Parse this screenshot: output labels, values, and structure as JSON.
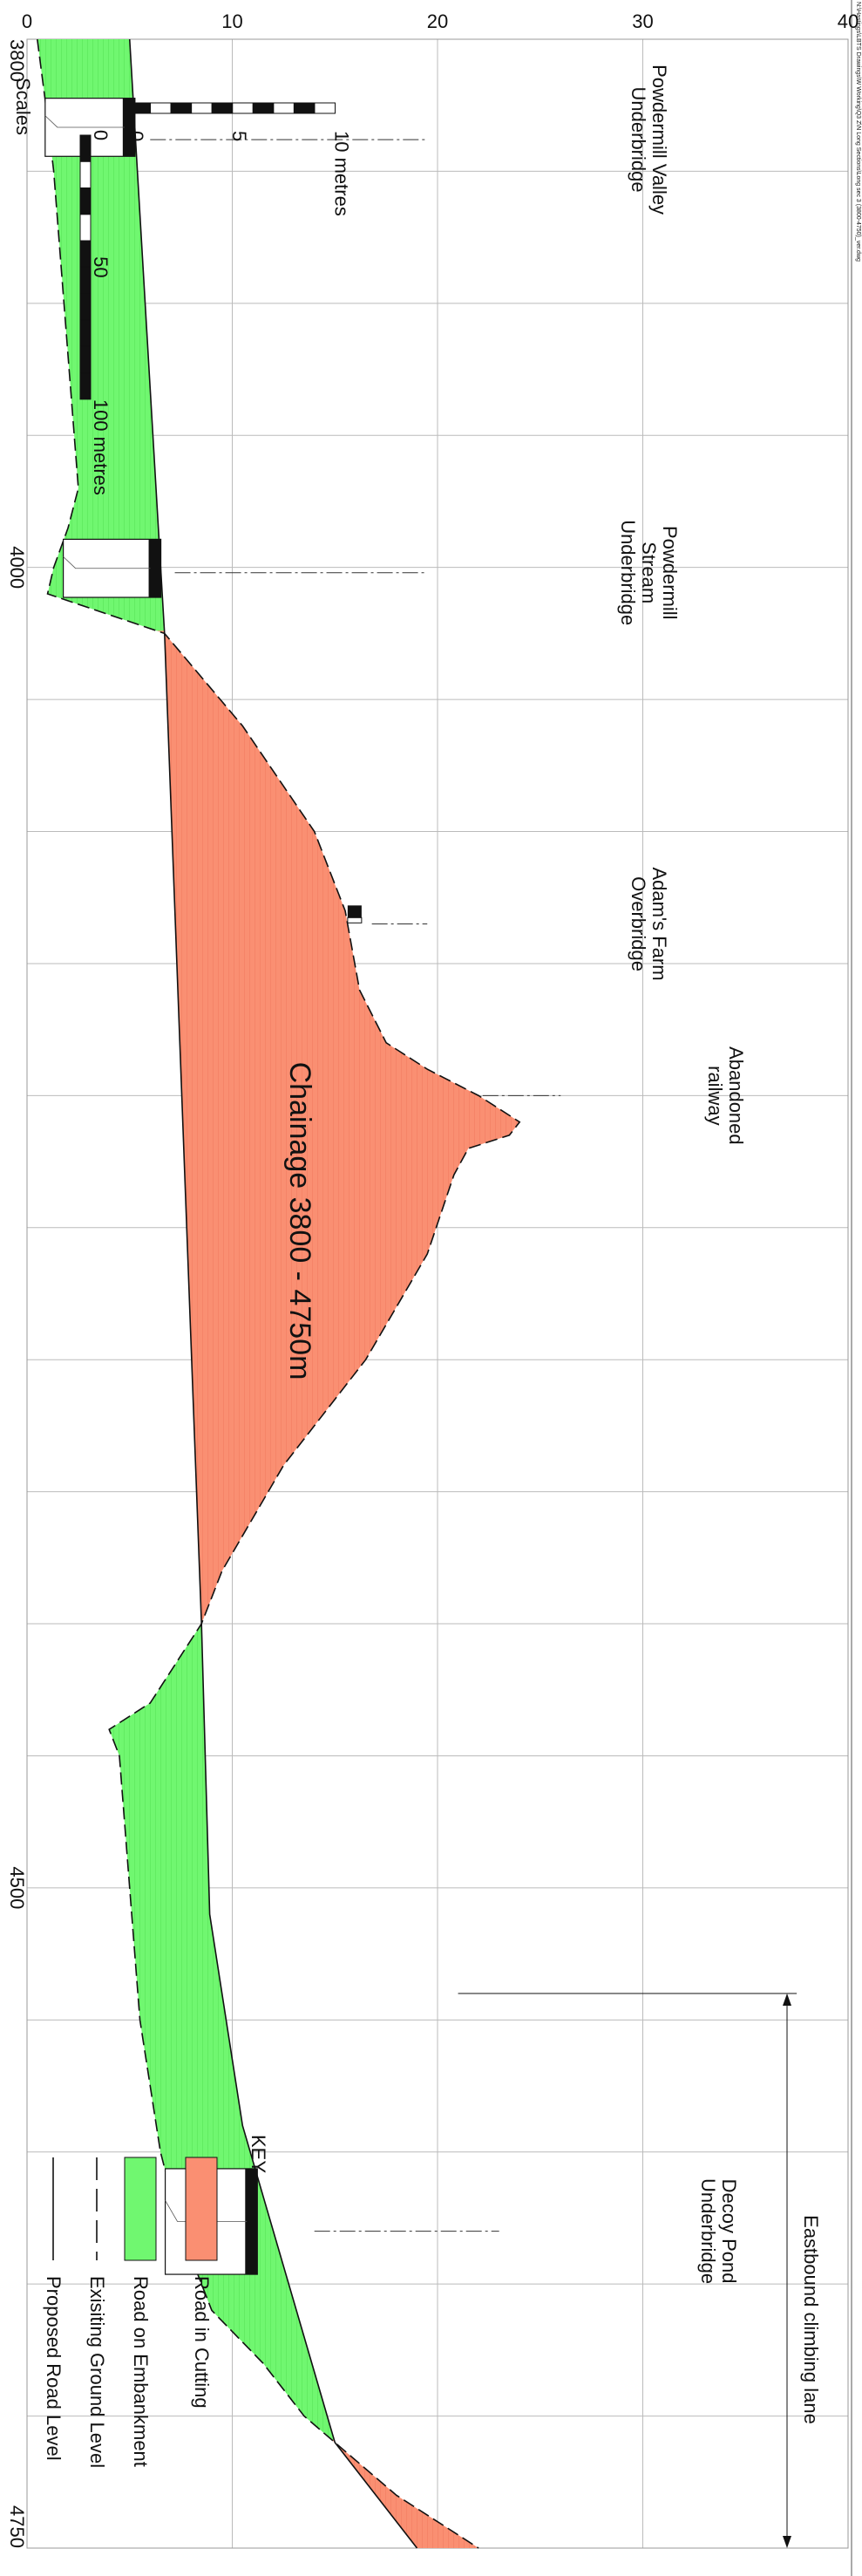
{
  "header": {
    "path_text": "N:\\Hastings\\LBTS Drawings\\W Working\\Q3 Z\\N Long Sections\\Long sec 3 (3800-4750)_ver.dwg"
  },
  "chart": {
    "title": "Chainage  3800 - 4750m",
    "x_ticks": [
      "3800",
      "4000",
      "4500",
      "4750"
    ],
    "y_ticks": [
      "0",
      "10",
      "20",
      "30",
      "40"
    ]
  },
  "annotations": {
    "powdermill_valley": [
      "Powdermill Valley",
      "Underbridge"
    ],
    "powdermill_stream": [
      "Powdermill",
      "Stream",
      "Underbridge"
    ],
    "adams_farm": [
      "Adam's Farm",
      "Overbridge"
    ],
    "abandoned_railway": [
      "Abandoned",
      "railway"
    ],
    "eastbound_lane": "Eastbound climbing lane",
    "decoy_pond": [
      "Decoy Pond",
      "Underbridge"
    ]
  },
  "scales": {
    "title": "Scales",
    "vertical_ticks": [
      "0",
      "5",
      "10 metres"
    ],
    "horizontal_ticks": [
      "0",
      "50",
      "100 metres"
    ]
  },
  "key": {
    "title": "KEY",
    "items": [
      {
        "label": "Road in Cutting",
        "color": "#fa8f72"
      },
      {
        "label": "Road on Embankment",
        "color": "#70f770"
      },
      {
        "label": "Exisiting Ground Level",
        "style": "dashed"
      },
      {
        "label": "Proposed Road Level",
        "style": "solid"
      }
    ]
  },
  "chart_data": {
    "type": "area",
    "xlabel": "",
    "ylabel": "",
    "xlim": [
      3800,
      4750
    ],
    "ylim": [
      0,
      40
    ],
    "proposed_road_level": {
      "x": [
        3800,
        4025,
        4400,
        4510,
        4590,
        4710,
        4750
      ],
      "y": [
        5,
        6.7,
        8.5,
        8.9,
        10.5,
        15,
        19
      ]
    },
    "existing_ground_level": {
      "x": [
        3800,
        3830,
        3850,
        3870,
        3900,
        3950,
        3970,
        3985,
        4000,
        4010,
        4025,
        4060,
        4100,
        4130,
        4160,
        4180,
        4190,
        4200,
        4210,
        4215,
        4220,
        4230,
        4260,
        4300,
        4340,
        4380,
        4400,
        4430,
        4440,
        4450,
        4500,
        4550,
        4600,
        4630,
        4660,
        4680,
        4700,
        4710,
        4730,
        4750
      ],
      "y": [
        0.5,
        1,
        1.3,
        1.5,
        1.8,
        2.3,
        2.5,
        2.0,
        1.3,
        1.0,
        6.7,
        10.5,
        14,
        15.5,
        16.2,
        17.5,
        19.5,
        22.0,
        24.0,
        23.5,
        21.5,
        20.8,
        19.5,
        16.5,
        12.5,
        9.5,
        8.5,
        6.0,
        4.0,
        4.5,
        5.0,
        5.5,
        6.5,
        7.5,
        9.0,
        11.5,
        13.5,
        15.0,
        18.0,
        22.0
      ]
    },
    "structures": [
      {
        "name": "Powdermill Valley Underbridge",
        "chainage": 3838
      },
      {
        "name": "Powdermill Stream Underbridge",
        "chainage": 4002
      },
      {
        "name": "Adam's Farm Overbridge",
        "chainage": 4135
      },
      {
        "name": "Abandoned railway",
        "chainage": 4200
      },
      {
        "name": "Decoy Pond Underbridge",
        "chainage": 4630
      }
    ],
    "eastbound_climbing_lane": [
      4540,
      4750
    ]
  }
}
